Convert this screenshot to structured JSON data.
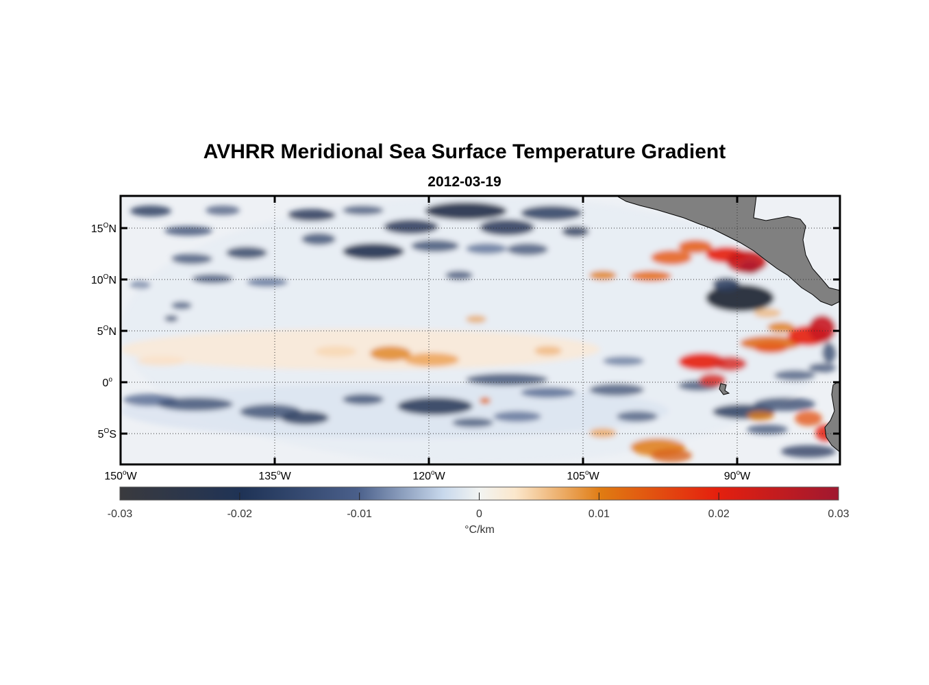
{
  "figure": {
    "title": "AVHRR Meridional Sea Surface Temperature Gradient",
    "subtitle": "2012-03-19"
  },
  "chart_data": {
    "type": "heatmap",
    "title": "AVHRR Meridional Sea Surface Temperature Gradient",
    "subtitle": "2012-03-19",
    "x_ticks": [
      {
        "deg": "150",
        "dir": "W"
      },
      {
        "deg": "135",
        "dir": "W"
      },
      {
        "deg": "120",
        "dir": "W"
      },
      {
        "deg": "105",
        "dir": "W"
      },
      {
        "deg": "90",
        "dir": "W"
      }
    ],
    "y_ticks": [
      {
        "deg": "15",
        "dir": "N"
      },
      {
        "deg": "10",
        "dir": "N"
      },
      {
        "deg": "5",
        "dir": "N"
      },
      {
        "deg": "0",
        "dir": ""
      },
      {
        "deg": "5",
        "dir": "S"
      }
    ],
    "lon_range": [
      -150,
      -80
    ],
    "lat_range": [
      -8,
      18
    ],
    "grid": true,
    "colorbar": {
      "ticks": [
        "-0.03",
        "-0.02",
        "-0.01",
        "0",
        "0.01",
        "0.02",
        "0.03"
      ],
      "range": [
        -0.03,
        0.03
      ],
      "units": "°C/km",
      "colors": [
        "#3a3a3e",
        "#1f3356",
        "#4a5f8a",
        "#c8d8ec",
        "#fbe7cc",
        "#e07b12",
        "#e5200e",
        "#a01830"
      ]
    },
    "land_color": "#808080"
  }
}
